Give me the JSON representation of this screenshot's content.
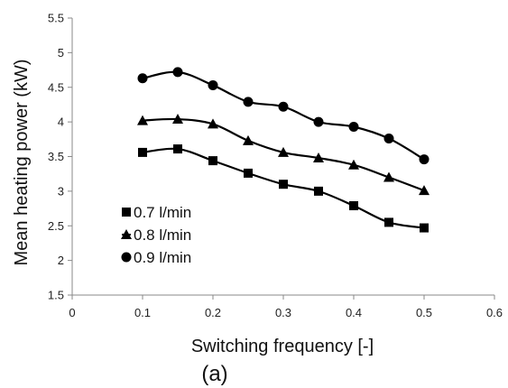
{
  "chart_data": {
    "type": "line",
    "xlabel": "Switching frequency [-]",
    "ylabel": "Mean heating power (kW)",
    "caption": "(a)",
    "xlim": [
      0,
      0.6
    ],
    "ylim": [
      1.5,
      5.5
    ],
    "xticks": [
      0,
      0.1,
      0.2,
      0.3,
      0.4,
      0.5,
      0.6
    ],
    "yticks": [
      1.5,
      2,
      2.5,
      3,
      3.5,
      4,
      4.5,
      5,
      5.5
    ],
    "xtick_labels": [
      "0",
      "0.1",
      "0.2",
      "0.3",
      "0.4",
      "0.5",
      "0.6"
    ],
    "ytick_labels": [
      "1.5",
      "2",
      "2.5",
      "3",
      "3.5",
      "4",
      "4.5",
      "5",
      "5.5"
    ],
    "grid": false,
    "legend_position": "lower-left",
    "x": [
      0.1,
      0.15,
      0.2,
      0.25,
      0.3,
      0.35,
      0.4,
      0.45,
      0.5
    ],
    "series": [
      {
        "name": "0.7 l/min",
        "marker": "square",
        "values": [
          3.56,
          3.61,
          3.44,
          3.26,
          3.1,
          3.0,
          2.79,
          2.55,
          2.47
        ]
      },
      {
        "name": "0.8 l/min",
        "marker": "triangle",
        "values": [
          4.02,
          4.04,
          3.97,
          3.73,
          3.56,
          3.48,
          3.38,
          3.2,
          3.01
        ]
      },
      {
        "name": "0.9 l/min",
        "marker": "circle",
        "values": [
          4.63,
          4.72,
          4.53,
          4.29,
          4.22,
          4.0,
          3.93,
          3.76,
          3.46
        ]
      }
    ],
    "colors": {
      "line": "#000000",
      "axis": "#888888"
    }
  }
}
